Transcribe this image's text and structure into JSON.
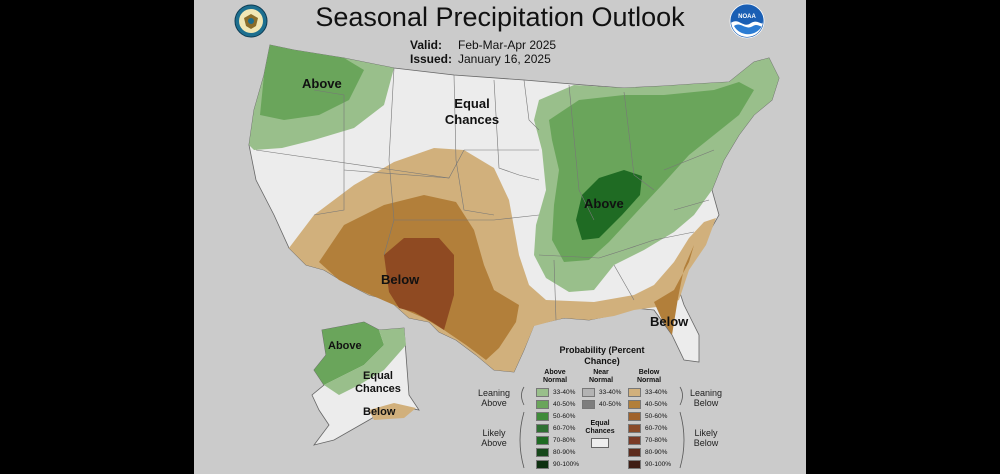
{
  "title": "Seasonal Precipitation Outlook",
  "valid": {
    "label": "Valid:",
    "value": "Feb-Mar-Apr 2025"
  },
  "issued": {
    "label": "Issued:",
    "value": "January 16, 2025"
  },
  "logos": {
    "left": "doc-seal",
    "right": "noaa"
  },
  "map_labels": {
    "nw_above": "Above",
    "equal_chances": "Equal Chances",
    "sw_below": "Below",
    "ov_above": "Above",
    "se_below": "Below",
    "ak_above": "Above",
    "ak_equal": "Equal Chances",
    "ak_below": "Below"
  },
  "legend": {
    "title": "Probability (Percent Chance)",
    "above_header": "Above Normal",
    "near_header": "Near Normal",
    "below_header": "Below Normal",
    "equal_label": "Equal Chances",
    "leaning_above": "Leaning Above",
    "likely_above": "Likely Above",
    "leaning_below": "Leaning Below",
    "likely_below": "Likely Below",
    "above": [
      {
        "range": "33-40%",
        "color": "#99bf8b"
      },
      {
        "range": "40-50%",
        "color": "#6aa55b"
      },
      {
        "range": "50-60%",
        "color": "#3f8b3a"
      },
      {
        "range": "60-70%",
        "color": "#2e7032"
      },
      {
        "range": "70-80%",
        "color": "#1f6b23"
      },
      {
        "range": "80-90%",
        "color": "#16481b"
      },
      {
        "range": "90-100%",
        "color": "#0d3010"
      }
    ],
    "near": [
      {
        "range": "33-40%",
        "color": "#b3b3b3"
      },
      {
        "range": "40-50%",
        "color": "#7e7e7e"
      }
    ],
    "below": [
      {
        "range": "33-40%",
        "color": "#d1b07c"
      },
      {
        "range": "40-50%",
        "color": "#b27f3a"
      },
      {
        "range": "50-60%",
        "color": "#a0622b"
      },
      {
        "range": "60-70%",
        "color": "#8a4b2a"
      },
      {
        "range": "70-80%",
        "color": "#7a3a26"
      },
      {
        "range": "80-90%",
        "color": "#5e2c1d"
      },
      {
        "range": "90-100%",
        "color": "#3f1d14"
      }
    ]
  }
}
